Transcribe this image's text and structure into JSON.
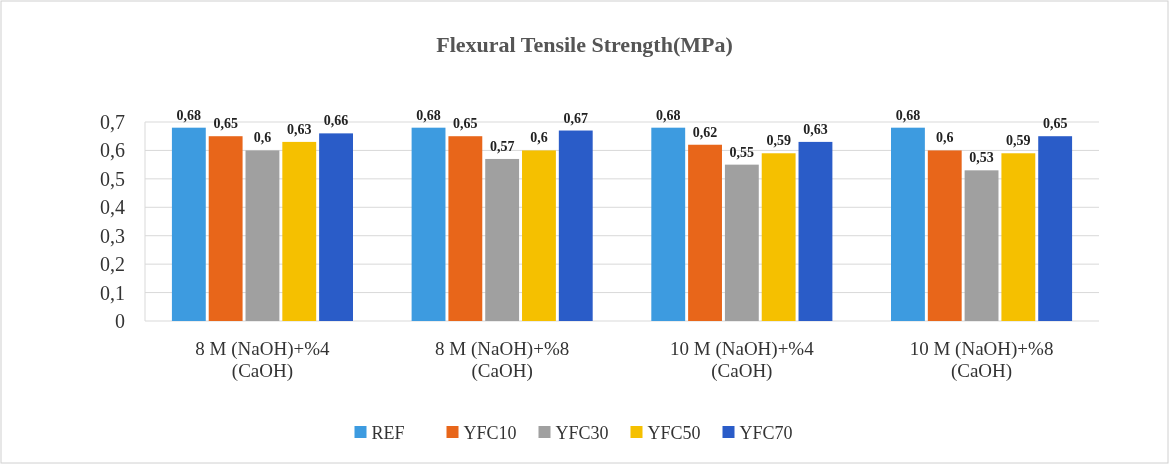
{
  "chart_data": {
    "type": "bar",
    "title": "Flexural Tensile Strength(MPa)",
    "categories": [
      "8 M (NaOH)+%4 (CaOH)",
      "8 M (NaOH)+%8 (CaOH)",
      "10 M (NaOH)+%4 (CaOH)",
      "10 M (NaOH)+%8 (CaOH)"
    ],
    "series": [
      {
        "name": "REF",
        "color": "#3d9be0",
        "values": [
          0.68,
          0.68,
          0.68,
          0.68
        ],
        "value_labels": [
          "0,68",
          "0,68",
          "0,68",
          "0,68"
        ]
      },
      {
        "name": "YFC10",
        "color": "#e8661a",
        "values": [
          0.65,
          0.65,
          0.62,
          0.6
        ],
        "value_labels": [
          "0,65",
          "0,65",
          "0,62",
          "0,6"
        ]
      },
      {
        "name": "YFC30",
        "color": "#a0a0a0",
        "values": [
          0.6,
          0.57,
          0.55,
          0.53
        ],
        "value_labels": [
          "0,6",
          "0,57",
          "0,55",
          "0,53"
        ]
      },
      {
        "name": "YFC50",
        "color": "#f5c000",
        "values": [
          0.63,
          0.6,
          0.59,
          0.59
        ],
        "value_labels": [
          "0,63",
          "0,6",
          "0,59",
          "0,59"
        ]
      },
      {
        "name": "YFC70",
        "color": "#2a5cc8",
        "values": [
          0.66,
          0.67,
          0.63,
          0.65
        ],
        "value_labels": [
          "0,66",
          "0,67",
          "0,63",
          "0,65"
        ]
      }
    ],
    "ylim": [
      0,
      0.7
    ],
    "yticks": [
      {
        "value": 0,
        "label": "0"
      },
      {
        "value": 0.1,
        "label": "0,1"
      },
      {
        "value": 0.2,
        "label": "0,2"
      },
      {
        "value": 0.3,
        "label": "0,3"
      },
      {
        "value": 0.4,
        "label": "0,4"
      },
      {
        "value": 0.5,
        "label": "0,5"
      },
      {
        "value": 0.6,
        "label": "0,6"
      },
      {
        "value": 0.7,
        "label": "0,7"
      }
    ],
    "grid": "y",
    "legend": "bottom"
  }
}
